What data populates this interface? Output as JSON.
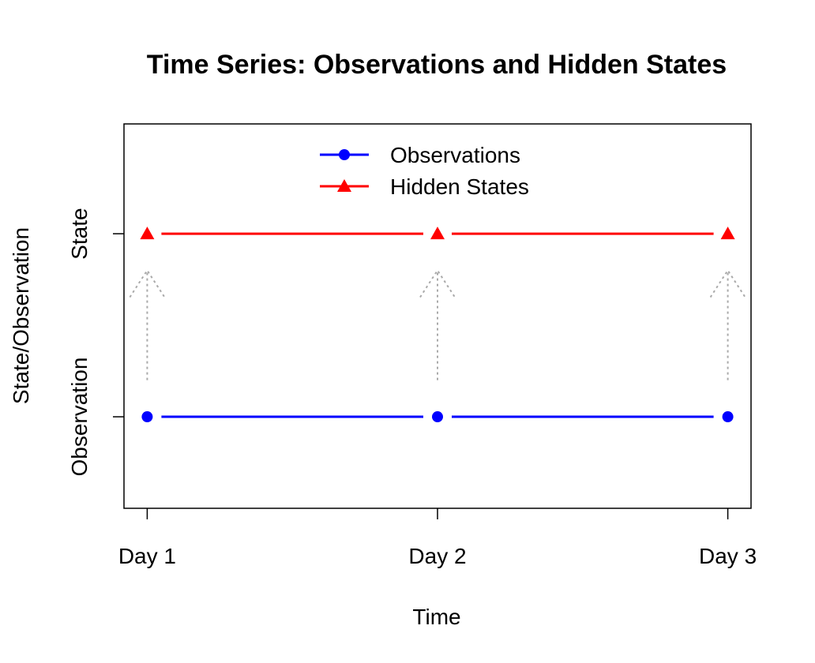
{
  "chart_data": {
    "type": "line",
    "title": "Time Series: Observations and Hidden States",
    "xlabel": "Time",
    "ylabel": "State/Observation",
    "categories": [
      "Day 1",
      "Day 2",
      "Day 3"
    ],
    "y_tick_labels": [
      "Observation",
      "State"
    ],
    "ylim": [
      0.5,
      2.6
    ],
    "xlim": [
      0.92,
      3.08
    ],
    "series": [
      {
        "name": "Observations",
        "values": [
          1,
          1,
          1
        ],
        "color": "#0000ff",
        "marker": "circle"
      },
      {
        "name": "Hidden States",
        "values": [
          2,
          2,
          2
        ],
        "color": "#ff0000",
        "marker": "triangle"
      }
    ],
    "annotations": [
      {
        "kind": "dotted-arrow",
        "x": "Day 1",
        "from": 1.2,
        "to": 1.8,
        "color": "#aaaaaa"
      },
      {
        "kind": "dotted-arrow",
        "x": "Day 2",
        "from": 1.2,
        "to": 1.8,
        "color": "#aaaaaa"
      },
      {
        "kind": "dotted-arrow",
        "x": "Day 3",
        "from": 1.2,
        "to": 1.8,
        "color": "#aaaaaa"
      }
    ],
    "legend": "top-center",
    "grid": false
  }
}
